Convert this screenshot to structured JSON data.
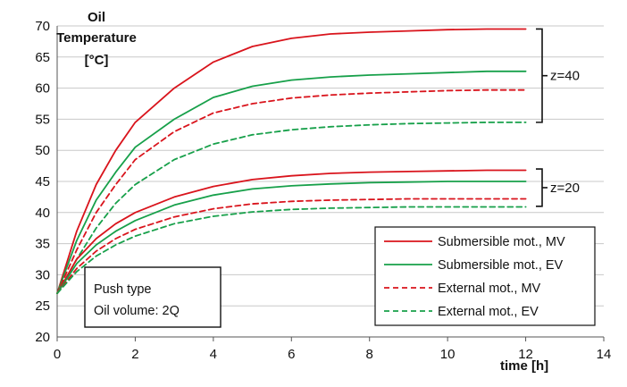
{
  "chart_data": {
    "type": "line",
    "title": "",
    "ylabel": [
      "Oil",
      "Temperature",
      "[°C]"
    ],
    "xlabel": "time [h]",
    "xlim": [
      0,
      14
    ],
    "ylim": [
      20,
      70
    ],
    "xticks": [
      0,
      2,
      4,
      6,
      8,
      10,
      12,
      14
    ],
    "yticks": [
      20,
      25,
      30,
      35,
      40,
      45,
      50,
      55,
      60,
      65,
      70
    ],
    "grid": "horizontal",
    "legend_position": "bottom-right",
    "group_labels": [
      {
        "text": "z=40",
        "range": [
          54.5,
          69.5
        ]
      },
      {
        "text": "z=20",
        "range": [
          41,
          47
        ]
      }
    ],
    "annotation": [
      "Push type",
      "Oil volume: 2Q"
    ],
    "series": [
      {
        "name": "Submersible mot., MV",
        "color": "#d9141c",
        "dash": "solid",
        "group": "z=40",
        "x": [
          0,
          0.5,
          1,
          1.5,
          2,
          3,
          4,
          5,
          6,
          7,
          8,
          9,
          10,
          11,
          12
        ],
        "y": [
          27,
          37,
          44.5,
          50,
          54.5,
          60,
          64.2,
          66.7,
          68,
          68.7,
          69,
          69.2,
          69.4,
          69.5,
          69.5
        ]
      },
      {
        "name": "Submersible mot., EV",
        "color": "#17a04a",
        "dash": "solid",
        "group": "z=40",
        "x": [
          0,
          0.5,
          1,
          1.5,
          2,
          3,
          4,
          5,
          6,
          7,
          8,
          9,
          10,
          11,
          12
        ],
        "y": [
          27,
          35.5,
          42,
          46.5,
          50.5,
          55,
          58.5,
          60.3,
          61.3,
          61.8,
          62.1,
          62.3,
          62.5,
          62.7,
          62.7
        ]
      },
      {
        "name": "External mot., MV",
        "color": "#d9141c",
        "dash": "dashed",
        "group": "z=40",
        "x": [
          0,
          0.5,
          1,
          1.5,
          2,
          3,
          4,
          5,
          6,
          7,
          8,
          9,
          10,
          11,
          12
        ],
        "y": [
          27,
          34,
          40,
          44.5,
          48.5,
          53,
          56,
          57.5,
          58.4,
          58.9,
          59.2,
          59.4,
          59.6,
          59.7,
          59.7
        ]
      },
      {
        "name": "External mot., EV",
        "color": "#17a04a",
        "dash": "dashed",
        "group": "z=40",
        "x": [
          0,
          0.5,
          1,
          1.5,
          2,
          3,
          4,
          5,
          6,
          7,
          8,
          9,
          10,
          11,
          12
        ],
        "y": [
          27,
          32.5,
          37.5,
          41.5,
          44.5,
          48.5,
          51,
          52.5,
          53.3,
          53.8,
          54.1,
          54.3,
          54.4,
          54.5,
          54.5
        ]
      },
      {
        "name": "Submersible mot., MV",
        "color": "#d9141c",
        "dash": "solid",
        "group": "z=20",
        "x": [
          0,
          0.5,
          1,
          1.5,
          2,
          3,
          4,
          5,
          6,
          7,
          8,
          9,
          10,
          11,
          12
        ],
        "y": [
          27,
          32.5,
          35.8,
          38.2,
          40,
          42.5,
          44.2,
          45.3,
          45.9,
          46.3,
          46.5,
          46.6,
          46.7,
          46.8,
          46.8
        ]
      },
      {
        "name": "Submersible mot., EV",
        "color": "#17a04a",
        "dash": "solid",
        "group": "z=20",
        "x": [
          0,
          0.5,
          1,
          1.5,
          2,
          3,
          4,
          5,
          6,
          7,
          8,
          9,
          10,
          11,
          12
        ],
        "y": [
          27,
          31.8,
          34.8,
          37,
          38.7,
          41.2,
          42.8,
          43.8,
          44.3,
          44.6,
          44.8,
          44.9,
          45,
          45,
          45
        ]
      },
      {
        "name": "External mot., MV",
        "color": "#d9141c",
        "dash": "dashed",
        "group": "z=20",
        "x": [
          0,
          0.5,
          1,
          1.5,
          2,
          3,
          4,
          5,
          6,
          7,
          8,
          9,
          10,
          11,
          12
        ],
        "y": [
          27,
          31,
          33.8,
          35.8,
          37.3,
          39.3,
          40.6,
          41.4,
          41.8,
          42,
          42.1,
          42.2,
          42.2,
          42.2,
          42.2
        ]
      },
      {
        "name": "External mot., EV",
        "color": "#17a04a",
        "dash": "dashed",
        "group": "z=20",
        "x": [
          0,
          0.5,
          1,
          1.5,
          2,
          3,
          4,
          5,
          6,
          7,
          8,
          9,
          10,
          11,
          12
        ],
        "y": [
          27,
          30.5,
          33,
          34.8,
          36.2,
          38.2,
          39.4,
          40.1,
          40.5,
          40.7,
          40.8,
          40.9,
          40.9,
          40.9,
          40.9
        ]
      }
    ]
  }
}
